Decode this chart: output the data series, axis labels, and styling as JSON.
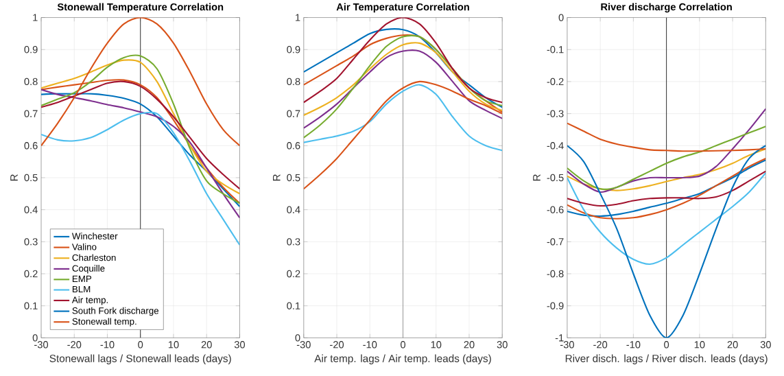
{
  "chart_data": [
    {
      "type": "line",
      "title": "Stonewall Temperature Correlation",
      "xlabel": "Stonewall lags / Stonewall leads (days)",
      "ylabel": "R",
      "x": [
        -30,
        -25,
        -20,
        -15,
        -10,
        -5,
        0,
        5,
        10,
        15,
        20,
        25,
        30
      ],
      "xlim": [
        -30,
        30
      ],
      "xticks": [
        -30,
        -20,
        -10,
        0,
        10,
        20,
        30
      ],
      "ylim": [
        0,
        1
      ],
      "yticks": [
        0,
        0.1,
        0.2,
        0.3,
        0.4,
        0.5,
        0.6,
        0.7,
        0.8,
        0.9,
        1
      ],
      "grid": true,
      "legend": "bottom left",
      "ref_lines": [
        {
          "axis": "x",
          "value": 0,
          "color": "#000000"
        }
      ],
      "series": [
        {
          "name": "Winchester",
          "color": "#0072bd",
          "values": [
            0.76,
            0.762,
            0.762,
            0.762,
            0.757,
            0.748,
            0.73,
            0.69,
            0.63,
            0.57,
            0.52,
            0.465,
            0.41
          ]
        },
        {
          "name": "Valino",
          "color": "#d95319",
          "values": [
            0.775,
            0.783,
            0.79,
            0.797,
            0.804,
            0.805,
            0.79,
            0.75,
            0.68,
            0.6,
            0.53,
            0.47,
            0.42
          ]
        },
        {
          "name": "Charleston",
          "color": "#edb120",
          "values": [
            0.78,
            0.795,
            0.81,
            0.83,
            0.852,
            0.867,
            0.86,
            0.8,
            0.7,
            0.6,
            0.52,
            0.48,
            0.45
          ]
        },
        {
          "name": "Coquille",
          "color": "#7e2f8e",
          "values": [
            0.775,
            0.76,
            0.75,
            0.74,
            0.728,
            0.718,
            0.705,
            0.69,
            0.66,
            0.61,
            0.53,
            0.45,
            0.375
          ]
        },
        {
          "name": "EMP",
          "color": "#77ac30",
          "values": [
            0.725,
            0.745,
            0.765,
            0.8,
            0.845,
            0.875,
            0.88,
            0.84,
            0.73,
            0.59,
            0.49,
            0.45,
            0.42
          ]
        },
        {
          "name": "BLM",
          "color": "#4dbeee",
          "values": [
            0.635,
            0.618,
            0.615,
            0.625,
            0.65,
            0.68,
            0.7,
            0.7,
            0.64,
            0.55,
            0.45,
            0.37,
            0.29
          ]
        },
        {
          "name": "Air temp.",
          "color": "#a2142f",
          "values": [
            0.72,
            0.735,
            0.755,
            0.775,
            0.795,
            0.8,
            0.785,
            0.745,
            0.69,
            0.625,
            0.56,
            0.51,
            0.465
          ]
        },
        {
          "name": "South Fork discharge",
          "color": "#0072bd",
          "values": [
            null,
            null,
            null,
            null,
            null,
            null,
            null,
            null,
            null,
            null,
            null,
            null,
            null
          ]
        },
        {
          "name": "Stonewall temp.",
          "color": "#d95319",
          "values": [
            0.6,
            0.67,
            0.75,
            0.84,
            0.92,
            0.98,
            1.0,
            0.98,
            0.92,
            0.83,
            0.73,
            0.65,
            0.6
          ]
        }
      ]
    },
    {
      "type": "line",
      "title": "Air Temperature Correlation",
      "xlabel": "Air temp. lags / Air temp. leads (days)",
      "ylabel": "R",
      "x": [
        -30,
        -25,
        -20,
        -15,
        -10,
        -5,
        0,
        5,
        10,
        15,
        20,
        25,
        30
      ],
      "xlim": [
        -30,
        30
      ],
      "xticks": [
        -30,
        -20,
        -10,
        0,
        10,
        20,
        30
      ],
      "ylim": [
        0,
        1
      ],
      "yticks": [
        0,
        0.1,
        0.2,
        0.3,
        0.4,
        0.5,
        0.6,
        0.7,
        0.8,
        0.9,
        1
      ],
      "grid": true,
      "ref_lines": [
        {
          "axis": "x",
          "value": 0,
          "color": "#808080"
        }
      ],
      "series": [
        {
          "color": "#0072bd",
          "values": [
            0.83,
            0.86,
            0.89,
            0.92,
            0.95,
            0.963,
            0.962,
            0.94,
            0.89,
            0.83,
            0.79,
            0.75,
            0.72
          ]
        },
        {
          "color": "#d95319",
          "values": [
            0.79,
            0.82,
            0.85,
            0.88,
            0.915,
            0.935,
            0.945,
            0.94,
            0.9,
            0.84,
            0.78,
            0.74,
            0.705
          ]
        },
        {
          "color": "#edb120",
          "values": [
            0.695,
            0.72,
            0.75,
            0.79,
            0.84,
            0.885,
            0.915,
            0.92,
            0.89,
            0.83,
            0.77,
            0.73,
            0.71
          ]
        },
        {
          "color": "#7e2f8e",
          "values": [
            0.655,
            0.69,
            0.73,
            0.78,
            0.83,
            0.875,
            0.895,
            0.895,
            0.86,
            0.8,
            0.74,
            0.71,
            0.685
          ]
        },
        {
          "color": "#77ac30",
          "values": [
            0.625,
            0.665,
            0.715,
            0.78,
            0.85,
            0.91,
            0.94,
            0.94,
            0.9,
            0.84,
            0.78,
            0.74,
            0.725
          ]
        },
        {
          "color": "#4dbeee",
          "values": [
            0.61,
            0.62,
            0.63,
            0.645,
            0.675,
            0.73,
            0.77,
            0.79,
            0.76,
            0.69,
            0.63,
            0.6,
            0.585
          ]
        },
        {
          "color": "#a2142f",
          "values": [
            0.735,
            0.77,
            0.81,
            0.87,
            0.93,
            0.98,
            1.0,
            0.98,
            0.92,
            0.84,
            0.78,
            0.75,
            0.735
          ]
        },
        {
          "color": "#d95319",
          "values": [
            0.465,
            0.51,
            0.56,
            0.62,
            0.68,
            0.74,
            0.78,
            0.8,
            0.79,
            0.77,
            0.745,
            0.725,
            0.7
          ]
        }
      ]
    },
    {
      "type": "line",
      "title": "River discharge Correlation",
      "xlabel": "River disch. lags / River disch. leads (days)",
      "ylabel": "R",
      "x": [
        -30,
        -25,
        -20,
        -15,
        -10,
        -5,
        0,
        5,
        10,
        15,
        20,
        25,
        30
      ],
      "xlim": [
        -30,
        30
      ],
      "xticks": [
        -30,
        -20,
        -10,
        0,
        10,
        20,
        30
      ],
      "ylim": [
        -1,
        0
      ],
      "yticks": [
        -1,
        -0.9,
        -0.8,
        -0.7,
        -0.6,
        -0.5,
        -0.4,
        -0.3,
        -0.2,
        -0.1,
        0
      ],
      "grid": true,
      "ref_lines": [
        {
          "axis": "x",
          "value": 0,
          "color": "#000000"
        }
      ],
      "series": [
        {
          "color": "#0072bd",
          "values": [
            -0.605,
            -0.617,
            -0.62,
            -0.615,
            -0.605,
            -0.592,
            -0.58,
            -0.565,
            -0.55,
            -0.525,
            -0.5,
            -0.47,
            -0.445
          ]
        },
        {
          "color": "#d95319",
          "values": [
            -0.585,
            -0.61,
            -0.625,
            -0.628,
            -0.625,
            -0.615,
            -0.6,
            -0.58,
            -0.555,
            -0.525,
            -0.495,
            -0.465,
            -0.44
          ]
        },
        {
          "color": "#edb120",
          "values": [
            -0.495,
            -0.52,
            -0.535,
            -0.54,
            -0.535,
            -0.525,
            -0.512,
            -0.5,
            -0.49,
            -0.475,
            -0.455,
            -0.43,
            -0.41
          ]
        },
        {
          "color": "#7e2f8e",
          "values": [
            -0.48,
            -0.52,
            -0.545,
            -0.53,
            -0.51,
            -0.5,
            -0.5,
            -0.5,
            -0.495,
            -0.465,
            -0.41,
            -0.35,
            -0.285
          ]
        },
        {
          "color": "#77ac30",
          "values": [
            -0.47,
            -0.51,
            -0.535,
            -0.53,
            -0.505,
            -0.48,
            -0.455,
            -0.435,
            -0.42,
            -0.4,
            -0.38,
            -0.36,
            -0.34
          ]
        },
        {
          "color": "#4dbeee",
          "values": [
            -0.5,
            -0.6,
            -0.67,
            -0.72,
            -0.755,
            -0.77,
            -0.75,
            -0.71,
            -0.67,
            -0.63,
            -0.59,
            -0.545,
            -0.485
          ]
        },
        {
          "color": "#a2142f",
          "values": [
            -0.565,
            -0.58,
            -0.588,
            -0.583,
            -0.572,
            -0.565,
            -0.563,
            -0.563,
            -0.565,
            -0.56,
            -0.54,
            -0.51,
            -0.48
          ]
        },
        {
          "color": "#0072bd",
          "values": [
            -0.4,
            -0.45,
            -0.55,
            -0.66,
            -0.8,
            -0.93,
            -1.0,
            -0.93,
            -0.8,
            -0.66,
            -0.53,
            -0.44,
            -0.4
          ]
        },
        {
          "color": "#d95319",
          "values": [
            -0.33,
            -0.355,
            -0.38,
            -0.395,
            -0.405,
            -0.413,
            -0.415,
            -0.417,
            -0.417,
            -0.416,
            -0.415,
            -0.413,
            -0.41
          ]
        }
      ]
    }
  ]
}
